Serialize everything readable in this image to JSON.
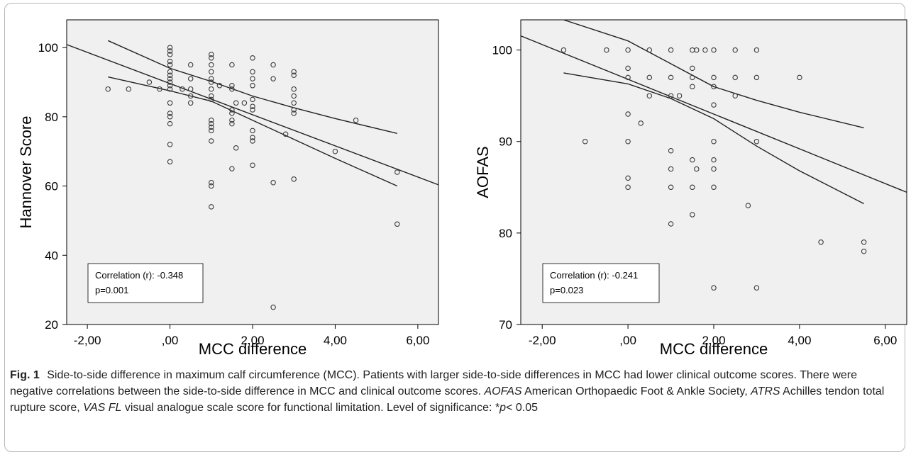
{
  "chart_data": [
    {
      "type": "scatter",
      "title": "",
      "xlabel": "MCC difference",
      "ylabel": "Hannover Score",
      "xlim": [
        -2.5,
        6.5
      ],
      "ylim": [
        20,
        108
      ],
      "x_ticks": [
        -2,
        0,
        2,
        4,
        6
      ],
      "x_tick_labels": [
        "-2,00",
        ",00",
        "2,00",
        "4,00",
        "6,00"
      ],
      "y_ticks": [
        20,
        40,
        60,
        80,
        100
      ],
      "y_tick_labels": [
        "20",
        "40",
        "60",
        "80",
        "100"
      ],
      "grid": false,
      "fit": {
        "slope": -4.5,
        "intercept": 89.6
      },
      "ci_upper": [
        [
          -1.5,
          102.0
        ],
        [
          0,
          94.0
        ],
        [
          1,
          90.2
        ],
        [
          2,
          86.0
        ],
        [
          3,
          82.6
        ],
        [
          4,
          79.5
        ],
        [
          5.5,
          75.2
        ]
      ],
      "ci_lower": [
        [
          -1.5,
          91.5
        ],
        [
          0,
          87.5
        ],
        [
          1,
          84.5
        ],
        [
          2,
          79.0
        ],
        [
          3,
          73.5
        ],
        [
          4,
          68.0
        ],
        [
          5.5,
          60.0
        ]
      ],
      "annotation": {
        "line1": "Correlation (r): -0.348",
        "line2": "p=0.001"
      },
      "points": [
        [
          -1.5,
          88
        ],
        [
          -1,
          88
        ],
        [
          -0.5,
          90
        ],
        [
          -0.25,
          88
        ],
        [
          0,
          100
        ],
        [
          0,
          99
        ],
        [
          0,
          98
        ],
        [
          0,
          96
        ],
        [
          0,
          95
        ],
        [
          0,
          93
        ],
        [
          0,
          92
        ],
        [
          0,
          91
        ],
        [
          0,
          90
        ],
        [
          0,
          89
        ],
        [
          0,
          88
        ],
        [
          0,
          84
        ],
        [
          0,
          81
        ],
        [
          0,
          80
        ],
        [
          0,
          78
        ],
        [
          0,
          72
        ],
        [
          0,
          67
        ],
        [
          0.3,
          88
        ],
        [
          0.5,
          95
        ],
        [
          0.5,
          91
        ],
        [
          0.5,
          88
        ],
        [
          0.5,
          86
        ],
        [
          0.5,
          84
        ],
        [
          1,
          98
        ],
        [
          1,
          97
        ],
        [
          1,
          95
        ],
        [
          1,
          93
        ],
        [
          1,
          91
        ],
        [
          1,
          90
        ],
        [
          1,
          88
        ],
        [
          1,
          86
        ],
        [
          1,
          85
        ],
        [
          1,
          79
        ],
        [
          1,
          78
        ],
        [
          1,
          77
        ],
        [
          1,
          76
        ],
        [
          1,
          73
        ],
        [
          1,
          61
        ],
        [
          1,
          60
        ],
        [
          1,
          54
        ],
        [
          1.2,
          89
        ],
        [
          1.5,
          95
        ],
        [
          1.5,
          89
        ],
        [
          1.5,
          88
        ],
        [
          1.5,
          82
        ],
        [
          1.5,
          81
        ],
        [
          1.5,
          79
        ],
        [
          1.5,
          78
        ],
        [
          1.5,
          65
        ],
        [
          1.6,
          84
        ],
        [
          1.6,
          71
        ],
        [
          1.8,
          84
        ],
        [
          2,
          97
        ],
        [
          2,
          93
        ],
        [
          2,
          91
        ],
        [
          2,
          89
        ],
        [
          2,
          85
        ],
        [
          2,
          83
        ],
        [
          2,
          82
        ],
        [
          2,
          76
        ],
        [
          2,
          74
        ],
        [
          2,
          73
        ],
        [
          2,
          66
        ],
        [
          2.5,
          95
        ],
        [
          2.5,
          91
        ],
        [
          2.5,
          61
        ],
        [
          2.5,
          25
        ],
        [
          2.8,
          75
        ],
        [
          3,
          93
        ],
        [
          3,
          92
        ],
        [
          3,
          88
        ],
        [
          3,
          86
        ],
        [
          3,
          84
        ],
        [
          3,
          82
        ],
        [
          3,
          81
        ],
        [
          3,
          62
        ],
        [
          4,
          70
        ],
        [
          4.5,
          79
        ],
        [
          5.5,
          64
        ],
        [
          5.5,
          49
        ]
      ]
    },
    {
      "type": "scatter",
      "title": "",
      "xlabel": "MCC difference",
      "ylabel": "AOFAS",
      "xlim": [
        -2.5,
        6.5
      ],
      "ylim": [
        70,
        103.3
      ],
      "x_ticks": [
        -2,
        0,
        2,
        4,
        6
      ],
      "x_tick_labels": [
        "-2,00",
        ",00",
        "2,00",
        "4,00",
        "6,00"
      ],
      "y_ticks": [
        70,
        80,
        90,
        100
      ],
      "y_tick_labels": [
        "70",
        "80",
        "90",
        "100"
      ],
      "grid": false,
      "fit": {
        "slope": -1.9,
        "intercept": 96.8
      },
      "ci_upper": [
        [
          -1.5,
          103.3
        ],
        [
          0,
          101.0
        ],
        [
          1,
          98.5
        ],
        [
          2,
          96.0
        ],
        [
          3,
          94.5
        ],
        [
          4,
          93.2
        ],
        [
          5.5,
          91.5
        ]
      ],
      "ci_lower": [
        [
          -1.5,
          97.5
        ],
        [
          0,
          96.3
        ],
        [
          1,
          94.7
        ],
        [
          2,
          92.5
        ],
        [
          3,
          89.5
        ],
        [
          4,
          86.8
        ],
        [
          5.5,
          83.2
        ]
      ],
      "annotation": {
        "line1": "Correlation (r): -0.241",
        "line2": "p=0.023"
      },
      "points": [
        [
          -1.5,
          100
        ],
        [
          -1,
          90
        ],
        [
          -0.5,
          100
        ],
        [
          0,
          100
        ],
        [
          0,
          98
        ],
        [
          0,
          97
        ],
        [
          0,
          93
        ],
        [
          0,
          90
        ],
        [
          0,
          86
        ],
        [
          0,
          85
        ],
        [
          0.3,
          92
        ],
        [
          0.5,
          100
        ],
        [
          0.5,
          97
        ],
        [
          0.5,
          95
        ],
        [
          1,
          100
        ],
        [
          1,
          97
        ],
        [
          1,
          95
        ],
        [
          1,
          89
        ],
        [
          1,
          87
        ],
        [
          1,
          85
        ],
        [
          1,
          81
        ],
        [
          1.2,
          95
        ],
        [
          1.5,
          100
        ],
        [
          1.5,
          98
        ],
        [
          1.5,
          97
        ],
        [
          1.5,
          96
        ],
        [
          1.5,
          88
        ],
        [
          1.5,
          85
        ],
        [
          1.5,
          82
        ],
        [
          1.6,
          100
        ],
        [
          1.6,
          87
        ],
        [
          1.8,
          100
        ],
        [
          2,
          100
        ],
        [
          2,
          97
        ],
        [
          2,
          96
        ],
        [
          2,
          94
        ],
        [
          2,
          90
        ],
        [
          2,
          88
        ],
        [
          2,
          87
        ],
        [
          2,
          85
        ],
        [
          2,
          74
        ],
        [
          2.5,
          100
        ],
        [
          2.5,
          97
        ],
        [
          2.5,
          95
        ],
        [
          2.8,
          83
        ],
        [
          3,
          100
        ],
        [
          3,
          97
        ],
        [
          3,
          90
        ],
        [
          3,
          74
        ],
        [
          4,
          97
        ],
        [
          4.5,
          79
        ],
        [
          5.5,
          79
        ],
        [
          5.5,
          78
        ]
      ]
    }
  ],
  "caption": {
    "fig_label": "Fig. 1",
    "text": "Side-to-side difference in maximum calf circumference (MCC). Patients with larger side-to-side differences in MCC had lower clinical outcome scores. There were negative correlations between the side-to-side difference in MCC and clinical outcome scores.",
    "abbr1": "AOFAS",
    "abbr1_text": "American Orthopaedic Foot & Ankle Society,",
    "abbr2": "ATRS",
    "abbr2_text": "Achilles tendon total rupture score,",
    "abbr3": "VAS FL",
    "abbr3_text": "visual analogue scale score for functional limitation. Level of significance: *",
    "p_symbol": "p",
    "p_text": "< 0.05"
  }
}
